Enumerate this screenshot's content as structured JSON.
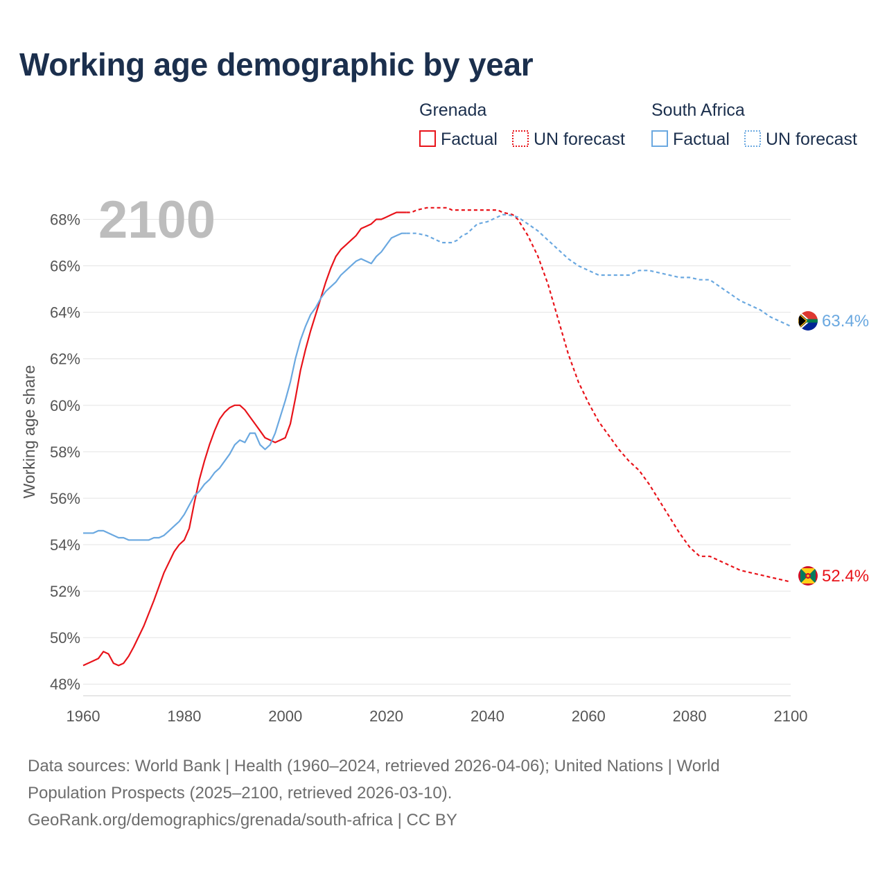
{
  "title": "Working age demographic by year",
  "legend": {
    "groups": [
      {
        "country": "Grenada",
        "factual_label": "Factual",
        "forecast_label": "UN forecast",
        "color": "#e8131a"
      },
      {
        "country": "South Africa",
        "factual_label": "Factual",
        "forecast_label": "UN forecast",
        "color": "#6aa8e0"
      }
    ]
  },
  "year_display": "2100",
  "end_labels": {
    "grenada": "52.4%",
    "south_africa": "63.4%"
  },
  "flags": {
    "grenada": "grenada-flag-icon",
    "south_africa": "south-africa-flag-icon"
  },
  "source": {
    "lines": [
      "Data sources: World Bank | Health (1960–2024, retrieved 2026-04-06); United Nations | World",
      "Population Prospects (2025–2100, retrieved 2026-03-10).",
      "GeoRank.org/demographics/grenada/south-africa | CC BY"
    ]
  },
  "chart_data": {
    "type": "line",
    "title": "Working age demographic by year",
    "xlabel": "",
    "ylabel": "Working age share",
    "xlim": [
      1960,
      2100
    ],
    "ylim": [
      47.5,
      69
    ],
    "x_ticks": [
      1960,
      1980,
      2000,
      2020,
      2040,
      2060,
      2080,
      2100
    ],
    "y_ticks": [
      48,
      50,
      52,
      54,
      56,
      58,
      60,
      62,
      64,
      66,
      68
    ],
    "y_tick_labels": [
      "48%",
      "50%",
      "52%",
      "54%",
      "56%",
      "58%",
      "60%",
      "62%",
      "64%",
      "66%",
      "68%"
    ],
    "x_tick_labels": [
      "1960",
      "1980",
      "2000",
      "2020",
      "2040",
      "2060",
      "2080",
      "2100"
    ],
    "grid": true,
    "factual_years": [
      1960,
      2024
    ],
    "forecast_years": [
      2024,
      2100
    ],
    "series": [
      {
        "name": "Grenada",
        "color": "#e8131a",
        "points": [
          [
            1960,
            48.8
          ],
          [
            1963,
            49.1
          ],
          [
            1964,
            49.4
          ],
          [
            1965,
            49.3
          ],
          [
            1966,
            48.9
          ],
          [
            1967,
            48.8
          ],
          [
            1968,
            48.9
          ],
          [
            1969,
            49.2
          ],
          [
            1970,
            49.6
          ],
          [
            1972,
            50.5
          ],
          [
            1974,
            51.6
          ],
          [
            1976,
            52.8
          ],
          [
            1978,
            53.7
          ],
          [
            1979,
            54.0
          ],
          [
            1980,
            54.2
          ],
          [
            1981,
            54.7
          ],
          [
            1982,
            55.8
          ],
          [
            1983,
            56.8
          ],
          [
            1984,
            57.6
          ],
          [
            1985,
            58.3
          ],
          [
            1986,
            58.9
          ],
          [
            1987,
            59.4
          ],
          [
            1988,
            59.7
          ],
          [
            1989,
            59.9
          ],
          [
            1990,
            60.0
          ],
          [
            1991,
            60.0
          ],
          [
            1992,
            59.8
          ],
          [
            1993,
            59.5
          ],
          [
            1994,
            59.2
          ],
          [
            1995,
            58.9
          ],
          [
            1996,
            58.6
          ],
          [
            1997,
            58.5
          ],
          [
            1998,
            58.4
          ],
          [
            1999,
            58.5
          ],
          [
            2000,
            58.6
          ],
          [
            2001,
            59.2
          ],
          [
            2002,
            60.3
          ],
          [
            2003,
            61.5
          ],
          [
            2004,
            62.4
          ],
          [
            2005,
            63.2
          ],
          [
            2006,
            63.9
          ],
          [
            2007,
            64.6
          ],
          [
            2008,
            65.3
          ],
          [
            2009,
            65.9
          ],
          [
            2010,
            66.4
          ],
          [
            2011,
            66.7
          ],
          [
            2012,
            66.9
          ],
          [
            2013,
            67.1
          ],
          [
            2014,
            67.3
          ],
          [
            2015,
            67.6
          ],
          [
            2016,
            67.7
          ],
          [
            2017,
            67.8
          ],
          [
            2018,
            68.0
          ],
          [
            2019,
            68.0
          ],
          [
            2020,
            68.1
          ],
          [
            2021,
            68.2
          ],
          [
            2022,
            68.3
          ],
          [
            2023,
            68.3
          ],
          [
            2024,
            68.3
          ],
          [
            2025,
            68.3
          ],
          [
            2026,
            68.4
          ],
          [
            2028,
            68.5
          ],
          [
            2030,
            68.5
          ],
          [
            2032,
            68.5
          ],
          [
            2033,
            68.4
          ],
          [
            2035,
            68.4
          ],
          [
            2038,
            68.4
          ],
          [
            2040,
            68.4
          ],
          [
            2042,
            68.4
          ],
          [
            2043,
            68.3
          ],
          [
            2045,
            68.2
          ],
          [
            2046,
            68.0
          ],
          [
            2048,
            67.3
          ],
          [
            2050,
            66.4
          ],
          [
            2052,
            65.2
          ],
          [
            2054,
            63.7
          ],
          [
            2056,
            62.2
          ],
          [
            2058,
            61.0
          ],
          [
            2060,
            60.1
          ],
          [
            2062,
            59.3
          ],
          [
            2064,
            58.7
          ],
          [
            2066,
            58.1
          ],
          [
            2068,
            57.6
          ],
          [
            2070,
            57.2
          ],
          [
            2072,
            56.6
          ],
          [
            2074,
            55.9
          ],
          [
            2076,
            55.2
          ],
          [
            2078,
            54.5
          ],
          [
            2080,
            53.9
          ],
          [
            2082,
            53.5
          ],
          [
            2084,
            53.5
          ],
          [
            2086,
            53.3
          ],
          [
            2088,
            53.1
          ],
          [
            2090,
            52.9
          ],
          [
            2092,
            52.8
          ],
          [
            2094,
            52.7
          ],
          [
            2096,
            52.6
          ],
          [
            2098,
            52.5
          ],
          [
            2100,
            52.4
          ]
        ]
      },
      {
        "name": "South Africa",
        "color": "#6aa8e0",
        "points": [
          [
            1960,
            54.5
          ],
          [
            1962,
            54.5
          ],
          [
            1963,
            54.6
          ],
          [
            1964,
            54.6
          ],
          [
            1965,
            54.5
          ],
          [
            1966,
            54.4
          ],
          [
            1967,
            54.3
          ],
          [
            1968,
            54.3
          ],
          [
            1969,
            54.2
          ],
          [
            1970,
            54.2
          ],
          [
            1971,
            54.2
          ],
          [
            1972,
            54.2
          ],
          [
            1973,
            54.2
          ],
          [
            1974,
            54.3
          ],
          [
            1975,
            54.3
          ],
          [
            1976,
            54.4
          ],
          [
            1977,
            54.6
          ],
          [
            1978,
            54.8
          ],
          [
            1979,
            55.0
          ],
          [
            1980,
            55.3
          ],
          [
            1981,
            55.7
          ],
          [
            1982,
            56.1
          ],
          [
            1983,
            56.3
          ],
          [
            1984,
            56.6
          ],
          [
            1985,
            56.8
          ],
          [
            1986,
            57.1
          ],
          [
            1987,
            57.3
          ],
          [
            1988,
            57.6
          ],
          [
            1989,
            57.9
          ],
          [
            1990,
            58.3
          ],
          [
            1991,
            58.5
          ],
          [
            1992,
            58.4
          ],
          [
            1993,
            58.8
          ],
          [
            1994,
            58.8
          ],
          [
            1995,
            58.3
          ],
          [
            1996,
            58.1
          ],
          [
            1997,
            58.3
          ],
          [
            1998,
            58.8
          ],
          [
            1999,
            59.5
          ],
          [
            2000,
            60.2
          ],
          [
            2001,
            61.0
          ],
          [
            2002,
            62.0
          ],
          [
            2003,
            62.8
          ],
          [
            2004,
            63.4
          ],
          [
            2005,
            63.9
          ],
          [
            2006,
            64.2
          ],
          [
            2007,
            64.6
          ],
          [
            2008,
            64.9
          ],
          [
            2009,
            65.1
          ],
          [
            2010,
            65.3
          ],
          [
            2011,
            65.6
          ],
          [
            2012,
            65.8
          ],
          [
            2013,
            66.0
          ],
          [
            2014,
            66.2
          ],
          [
            2015,
            66.3
          ],
          [
            2016,
            66.2
          ],
          [
            2017,
            66.1
          ],
          [
            2018,
            66.4
          ],
          [
            2019,
            66.6
          ],
          [
            2020,
            66.9
          ],
          [
            2021,
            67.2
          ],
          [
            2022,
            67.3
          ],
          [
            2023,
            67.4
          ],
          [
            2024,
            67.4
          ],
          [
            2026,
            67.4
          ],
          [
            2028,
            67.3
          ],
          [
            2030,
            67.1
          ],
          [
            2031,
            67.0
          ],
          [
            2033,
            67.0
          ],
          [
            2034,
            67.1
          ],
          [
            2035,
            67.3
          ],
          [
            2036,
            67.4
          ],
          [
            2037,
            67.6
          ],
          [
            2038,
            67.8
          ],
          [
            2040,
            67.9
          ],
          [
            2042,
            68.1
          ],
          [
            2043,
            68.2
          ],
          [
            2044,
            68.2
          ],
          [
            2046,
            68.1
          ],
          [
            2048,
            67.8
          ],
          [
            2050,
            67.5
          ],
          [
            2052,
            67.1
          ],
          [
            2054,
            66.7
          ],
          [
            2056,
            66.3
          ],
          [
            2058,
            66.0
          ],
          [
            2060,
            65.8
          ],
          [
            2062,
            65.6
          ],
          [
            2064,
            65.6
          ],
          [
            2066,
            65.6
          ],
          [
            2068,
            65.6
          ],
          [
            2070,
            65.8
          ],
          [
            2072,
            65.8
          ],
          [
            2074,
            65.7
          ],
          [
            2076,
            65.6
          ],
          [
            2078,
            65.5
          ],
          [
            2080,
            65.5
          ],
          [
            2082,
            65.4
          ],
          [
            2084,
            65.4
          ],
          [
            2086,
            65.1
          ],
          [
            2088,
            64.8
          ],
          [
            2090,
            64.5
          ],
          [
            2092,
            64.3
          ],
          [
            2094,
            64.1
          ],
          [
            2096,
            63.8
          ],
          [
            2098,
            63.6
          ],
          [
            2100,
            63.4
          ]
        ]
      }
    ]
  }
}
